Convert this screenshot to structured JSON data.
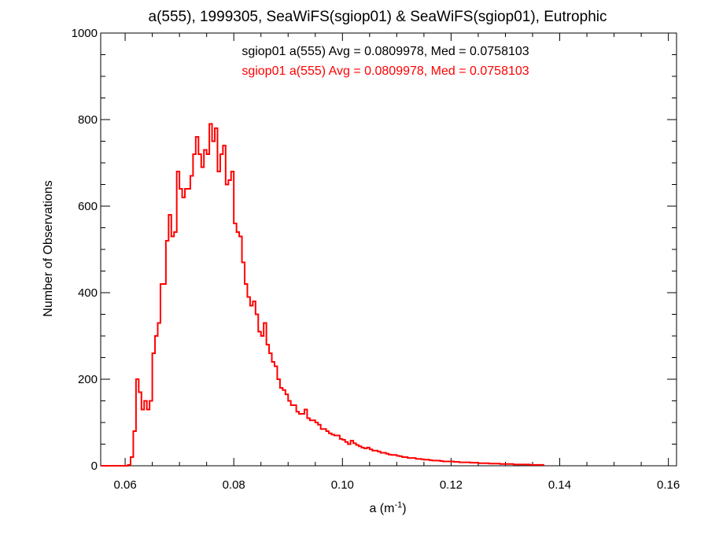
{
  "chart_data": {
    "type": "histogram",
    "title": "a(555), 1999305, SeaWiFS(sgiop01) & SeaWiFS(sgiop01), Eutrophic",
    "xlabel_base": "a (m",
    "xlabel_sup": "-1",
    "xlabel_tail": ")",
    "ylabel": "Number of Observations",
    "xlim": [
      0.0555,
      0.1615
    ],
    "ylim": [
      0,
      1000
    ],
    "xticks": [
      0.06,
      0.08,
      0.1,
      0.12,
      0.14,
      0.16
    ],
    "xtick_labels": [
      "0.06",
      "0.08",
      "0.10",
      "0.12",
      "0.14",
      "0.16"
    ],
    "yticks": [
      0,
      200,
      400,
      600,
      800,
      1000
    ],
    "ytick_labels": [
      "0",
      "200",
      "400",
      "600",
      "800",
      "1000"
    ],
    "grid": false,
    "annotations": [
      {
        "text": "sgiop01 a(555) Avg = 0.0809978, Med = 0.0758103",
        "color": "#000000"
      },
      {
        "text": "sgiop01 a(555) Avg = 0.0809978, Med = 0.0758103",
        "color": "#ff0000"
      }
    ],
    "series": [
      {
        "color": "#ff0000",
        "bin_width": 0.0005,
        "x_start": 0.06,
        "values": [
          0,
          2,
          20,
          80,
          200,
          170,
          130,
          150,
          130,
          150,
          260,
          300,
          330,
          420,
          420,
          520,
          580,
          530,
          540,
          680,
          640,
          620,
          640,
          640,
          670,
          720,
          760,
          720,
          690,
          730,
          720,
          790,
          750,
          780,
          680,
          720,
          740,
          650,
          660,
          680,
          560,
          540,
          530,
          470,
          420,
          390,
          370,
          380,
          350,
          310,
          300,
          330,
          280,
          260,
          240,
          230,
          200,
          180,
          175,
          165,
          150,
          140,
          140,
          125,
          120,
          120,
          130,
          110,
          105,
          105,
          100,
          95,
          85,
          85,
          80,
          75,
          72,
          70,
          70,
          62,
          60,
          55,
          50,
          58,
          52,
          48,
          45,
          42,
          40,
          42,
          38,
          35,
          35,
          33,
          30,
          30,
          28,
          26,
          25,
          25,
          23,
          22,
          20,
          20,
          18,
          18,
          18,
          16,
          16,
          15,
          14,
          14,
          13,
          12,
          12,
          12,
          11,
          10,
          10,
          10,
          10,
          9,
          9,
          8,
          8,
          8,
          8,
          7,
          7,
          7,
          6,
          6,
          6,
          6,
          5,
          5,
          5,
          5,
          4,
          4,
          4,
          4,
          4,
          3,
          3,
          3,
          3,
          3,
          3,
          2,
          2,
          2,
          2,
          2
        ]
      }
    ]
  }
}
